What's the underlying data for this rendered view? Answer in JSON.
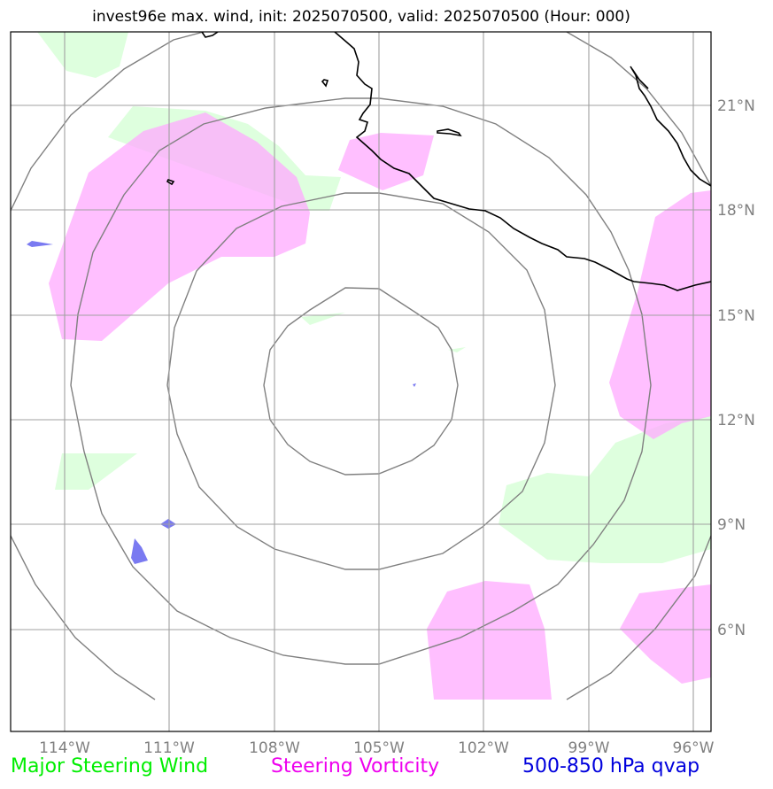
{
  "title": "invest96e max. wind, init: 2025070500, valid: 2025070500 (Hour: 000)",
  "map": {
    "lon_range": [
      -116,
      -95.5
    ],
    "lat_range": [
      3,
      23
    ],
    "lon_ticks": [
      "114°W",
      "111°W",
      "108°W",
      "105°W",
      "102°W",
      "99°W",
      "96°W"
    ],
    "lat_ticks": [
      "21°N",
      "18°N",
      "15°N",
      "12°N",
      "9°N",
      "6°N"
    ],
    "range_rings_center": {
      "lon": -105,
      "lat": 13
    },
    "colors": {
      "steering_wind": "#ccffcc",
      "steering_vorticity": "#ffaaff",
      "qvap": "#6b6bf0",
      "coastline": "#000000",
      "rings": "#808080",
      "grid": "#a0a0a0"
    }
  },
  "legend": {
    "wind": {
      "label": "Major Steering Wind",
      "color": "#00ee00"
    },
    "vorticity": {
      "label": "Steering Vorticity",
      "color": "#ee00ee"
    },
    "qvap": {
      "label": "500-850 hPa qvap",
      "color": "#0000dd"
    }
  }
}
